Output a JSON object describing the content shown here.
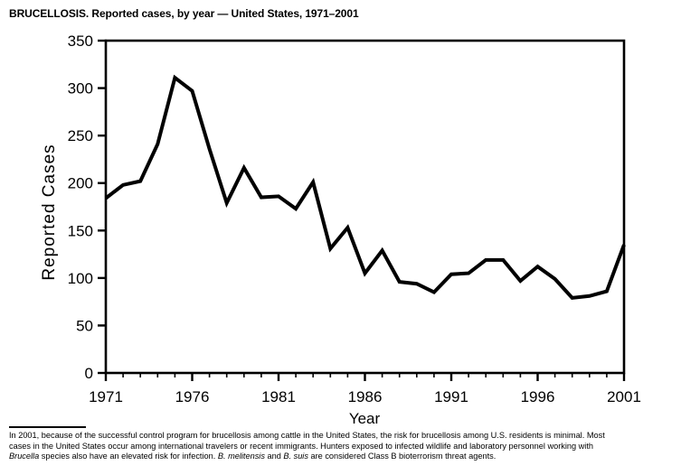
{
  "title": "BRUCELLOSIS. Reported cases, by year — United States, 1971–2001",
  "chart_data": {
    "type": "line",
    "title": "BRUCELLOSIS. Reported cases, by year — United States, 1971–2001",
    "xlabel": "Year",
    "ylabel": "Reported Cases",
    "ylim": [
      0,
      350
    ],
    "ytick_interval": 50,
    "labeled_xticks": [
      1971,
      1976,
      1981,
      1986,
      1991,
      1996,
      2001
    ],
    "grid": false,
    "legend": false,
    "line_color": "#000000",
    "background_color": "#ffffff",
    "x": [
      1971,
      1972,
      1973,
      1974,
      1975,
      1976,
      1977,
      1978,
      1979,
      1980,
      1981,
      1982,
      1983,
      1984,
      1985,
      1986,
      1987,
      1988,
      1989,
      1990,
      1991,
      1992,
      1993,
      1994,
      1995,
      1996,
      1997,
      1998,
      1999,
      2000,
      2001
    ],
    "values": [
      184,
      198,
      202,
      241,
      311,
      297,
      236,
      179,
      216,
      185,
      186,
      173,
      201,
      131,
      153,
      105,
      129,
      96,
      94,
      85,
      104,
      105,
      119,
      119,
      97,
      112,
      99,
      79,
      81,
      86,
      135
    ]
  },
  "footnote": {
    "lines": [
      [
        {
          "text": "In 2001, because of the successful control program for brucellosis among cattle in the United States, the risk for brucellosis among U.S. residents is minimal. Most",
          "italic": false
        }
      ],
      [
        {
          "text": "cases in the United States occur among international travelers or recent immigrants. Hunters exposed to infected wildlife and laboratory personnel working with",
          "italic": false
        }
      ],
      [
        {
          "text": "Brucella",
          "italic": true
        },
        {
          "text": " species also have an elevated risk for infection. ",
          "italic": false
        },
        {
          "text": "B. melitensis",
          "italic": true
        },
        {
          "text": " and ",
          "italic": false
        },
        {
          "text": "B. suis",
          "italic": true
        },
        {
          "text": " are considered Class B bioterrorism threat agents.",
          "italic": false
        }
      ]
    ]
  }
}
